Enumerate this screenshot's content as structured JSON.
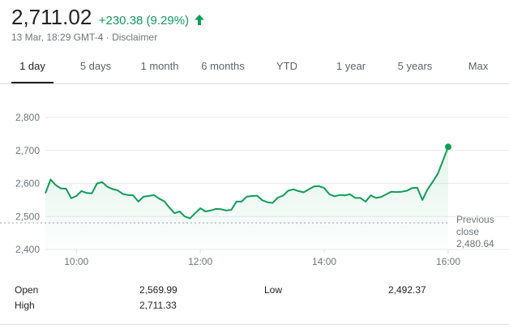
{
  "header": {
    "price": "2,711.02",
    "change": "+230.38 (9.29%)",
    "timestamp": "13 Mar, 18:29 GMT-4",
    "separator": " · ",
    "disclaimer": "Disclaimer",
    "change_color": "#0f9d58"
  },
  "tabs": [
    {
      "label": "1 day",
      "active": true
    },
    {
      "label": "5 days",
      "active": false
    },
    {
      "label": "1 month",
      "active": false
    },
    {
      "label": "6 months",
      "active": false
    },
    {
      "label": "YTD",
      "active": false
    },
    {
      "label": "1 year",
      "active": false
    },
    {
      "label": "5 years",
      "active": false
    },
    {
      "label": "Max",
      "active": false
    }
  ],
  "chart_data": {
    "type": "area",
    "x_start": "09:30",
    "x_end": "16:00",
    "x_unit": "minutes",
    "x": [
      570,
      575,
      580,
      585,
      590,
      595,
      600,
      605,
      610,
      615,
      620,
      625,
      630,
      635,
      640,
      645,
      650,
      655,
      660,
      665,
      670,
      675,
      680,
      685,
      690,
      695,
      700,
      705,
      710,
      715,
      720,
      725,
      730,
      735,
      740,
      745,
      750,
      755,
      760,
      765,
      770,
      775,
      780,
      785,
      790,
      795,
      800,
      805,
      810,
      815,
      820,
      825,
      830,
      835,
      840,
      845,
      850,
      855,
      860,
      865,
      870,
      875,
      880,
      885,
      890,
      895,
      900,
      905,
      910,
      915,
      920,
      925,
      930,
      935,
      940,
      945,
      950,
      955,
      960
    ],
    "values": [
      2570,
      2612,
      2595,
      2585,
      2584,
      2555,
      2562,
      2577,
      2571,
      2570,
      2600,
      2604,
      2590,
      2583,
      2579,
      2568,
      2565,
      2564,
      2545,
      2560,
      2562,
      2565,
      2554,
      2546,
      2527,
      2510,
      2515,
      2500,
      2494,
      2510,
      2525,
      2515,
      2518,
      2523,
      2522,
      2518,
      2520,
      2545,
      2545,
      2560,
      2562,
      2563,
      2549,
      2543,
      2541,
      2557,
      2563,
      2578,
      2582,
      2577,
      2573,
      2582,
      2591,
      2592,
      2586,
      2567,
      2561,
      2565,
      2564,
      2567,
      2556,
      2556,
      2545,
      2564,
      2556,
      2559,
      2567,
      2575,
      2574,
      2575,
      2578,
      2586,
      2587,
      2550,
      2582,
      2605,
      2630,
      2670,
      2711
    ],
    "yticks": [
      "2,800",
      "2,700",
      "2,600",
      "2,500",
      "2,400"
    ],
    "ytick_values": [
      2800,
      2700,
      2600,
      2500,
      2400
    ],
    "xticks": [
      "10:00",
      "12:00",
      "14:00",
      "16:00"
    ],
    "xtick_values": [
      600,
      720,
      840,
      960
    ],
    "ylim": [
      2400,
      2800
    ],
    "xlim": [
      570,
      960
    ],
    "previous_close": 2480.64,
    "previous_close_label_line1": "Previous",
    "previous_close_label_line2": "close",
    "previous_close_value": "2,480.64",
    "line_color": "#0f9d58",
    "grid": true
  },
  "stats": {
    "open_label": "Open",
    "open_value": "2,569.99",
    "high_label": "High",
    "high_value": "2,711.33",
    "low_label": "Low",
    "low_value": "2,492.37"
  }
}
